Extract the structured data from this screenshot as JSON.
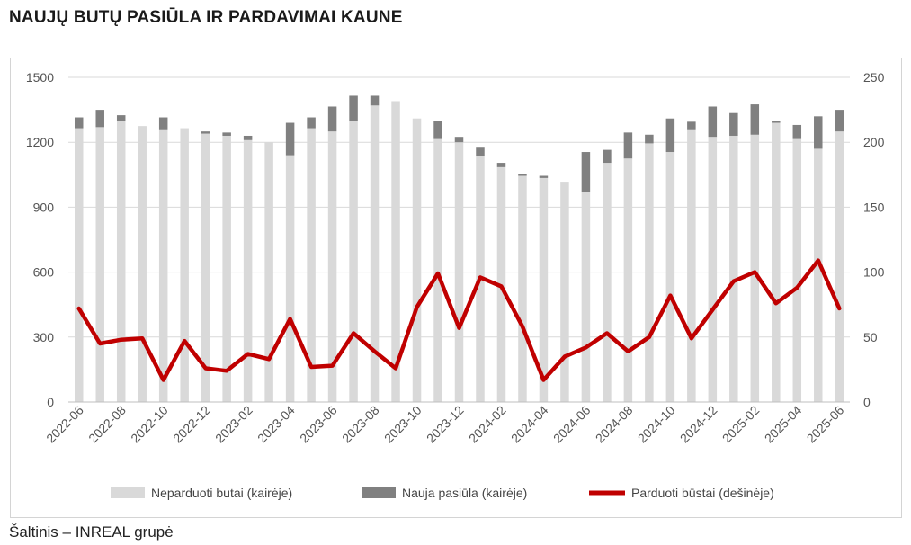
{
  "title": "NAUJŲ BUTŲ PASIŪLA IR PARDAVIMAI KAUNE",
  "source": "Šaltinis – INREAL grupė",
  "colors": {
    "unsold": "#d9d9d9",
    "new_supply": "#808080",
    "sold": "#c00000",
    "grid": "#d9d9d9"
  },
  "chart_data": {
    "type": "bar",
    "stacked": true,
    "categories": [
      "2022-06",
      "2022-07",
      "2022-08",
      "2022-09",
      "2022-10",
      "2022-11",
      "2022-12",
      "2023-01",
      "2023-02",
      "2023-03",
      "2023-04",
      "2023-05",
      "2023-06",
      "2023-07",
      "2023-08",
      "2023-09",
      "2023-10",
      "2023-11",
      "2023-12",
      "2024-01",
      "2024-02",
      "2024-03",
      "2024-04",
      "2024-05",
      "2024-06",
      "2024-07",
      "2024-08",
      "2024-09",
      "2024-10",
      "2024-11",
      "2024-12",
      "2025-01",
      "2025-02",
      "2025-03",
      "2025-04",
      "2025-05",
      "2025-06"
    ],
    "x_tick_labels": [
      "2022-06",
      "2022-08",
      "2022-10",
      "2022-12",
      "2023-02",
      "2023-04",
      "2023-06",
      "2023-08",
      "2023-10",
      "2023-12",
      "2024-02",
      "2024-04",
      "2024-06",
      "2024-08",
      "2024-10",
      "2024-12",
      "2025-02",
      "2025-04",
      "2025-06"
    ],
    "y_left": {
      "min": 0,
      "max": 1500,
      "ticks": [
        0,
        300,
        600,
        900,
        1200,
        1500
      ]
    },
    "y_right": {
      "min": 0,
      "max": 250,
      "ticks": [
        0,
        50,
        100,
        150,
        200,
        250
      ]
    },
    "grid": true,
    "legend_position": "bottom",
    "series": [
      {
        "name": "Neparduoti butai (kairėje)",
        "kind": "bar",
        "axis": "left",
        "values": [
          1265,
          1270,
          1300,
          1275,
          1260,
          1265,
          1240,
          1230,
          1210,
          1200,
          1140,
          1265,
          1250,
          1300,
          1370,
          1390,
          1310,
          1215,
          1200,
          1135,
          1085,
          1045,
          1035,
          1010,
          970,
          1105,
          1125,
          1195,
          1155,
          1260,
          1225,
          1230,
          1235,
          1290,
          1215,
          1170,
          1250
        ]
      },
      {
        "name": "Nauja pasiūla (kairėje)",
        "kind": "bar",
        "axis": "left",
        "values": [
          50,
          80,
          25,
          0,
          55,
          0,
          10,
          15,
          20,
          0,
          150,
          50,
          115,
          115,
          45,
          0,
          0,
          85,
          25,
          40,
          20,
          10,
          10,
          5,
          185,
          60,
          120,
          40,
          155,
          35,
          140,
          105,
          140,
          10,
          65,
          150,
          100
        ]
      },
      {
        "name": "Parduoti būstai (dešinėje)",
        "kind": "line",
        "axis": "right",
        "values": [
          72,
          45,
          48,
          49,
          17,
          47,
          26,
          24,
          37,
          33,
          64,
          27,
          28,
          53,
          39,
          26,
          73,
          99,
          57,
          96,
          89,
          58,
          17,
          35,
          42,
          53,
          39,
          50,
          82,
          49,
          71,
          93,
          100,
          76,
          88,
          109,
          72
        ]
      }
    ]
  }
}
